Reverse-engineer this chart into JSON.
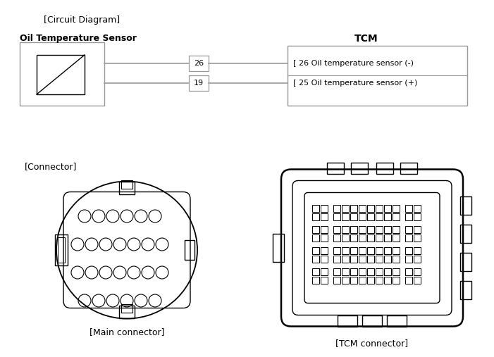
{
  "bg_color": "#ffffff",
  "line_color": "#000000",
  "gray_color": "#999999",
  "title_circuit": "[Circuit Diagram]",
  "title_connector": "[Connector]",
  "label_oil_sensor": "Oil Temperature Sensor",
  "label_tcm": "TCM",
  "label_pin26": "26",
  "label_pin19": "19",
  "label_tcm_26": "[ 26 Oil temperature sensor (-)",
  "label_tcm_25": "[ 25 Oil temperature sensor (+)",
  "label_main_conn": "[Main connector]",
  "label_tcm_conn": "[TCM connector]",
  "font_size_title": 9,
  "font_size_label": 9,
  "font_size_pin": 7,
  "font_size_tcm_label": 8
}
